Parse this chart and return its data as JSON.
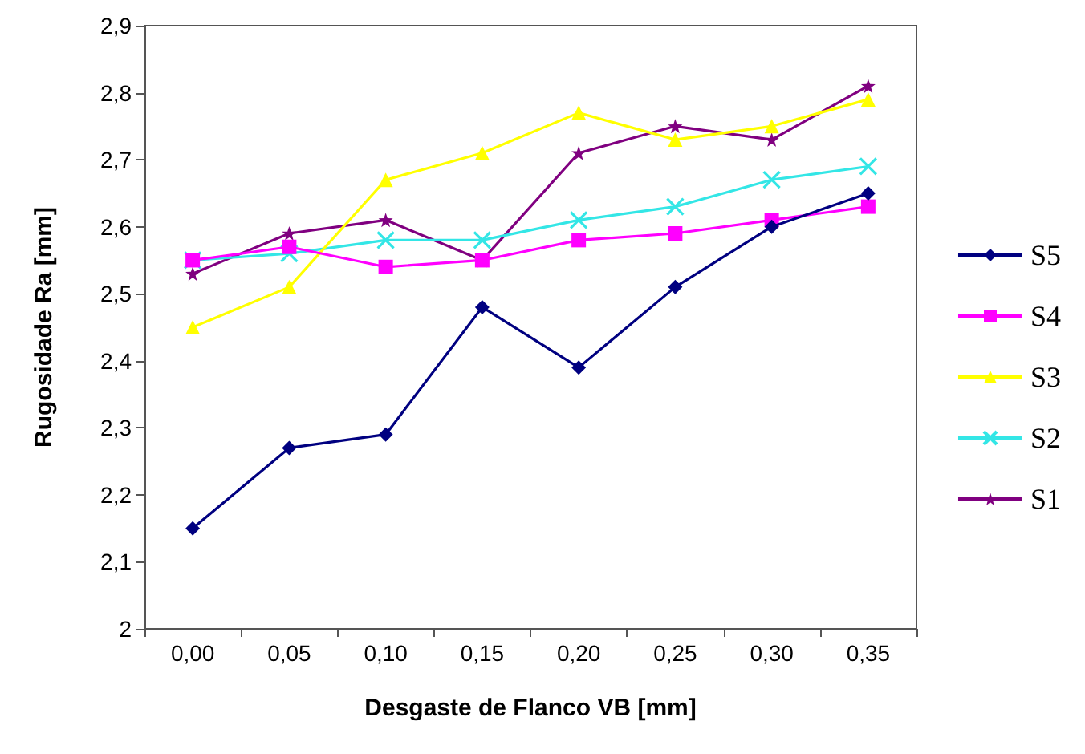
{
  "chart_data": {
    "type": "line",
    "xlabel": "Desgaste de Flanco VB [mm]",
    "ylabel": "Rugosidade Ra [mm]",
    "categories": [
      "0,00",
      "0,05",
      "0,10",
      "0,15",
      "0,20",
      "0,25",
      "0,30",
      "0,35"
    ],
    "series": [
      {
        "name": "S5",
        "color": "#000080",
        "marker": "diamond",
        "values": [
          2.15,
          2.27,
          2.29,
          2.48,
          2.39,
          2.51,
          2.6,
          2.65
        ]
      },
      {
        "name": "S4",
        "color": "#ff00ff",
        "marker": "square",
        "values": [
          2.55,
          2.57,
          2.54,
          2.55,
          2.58,
          2.59,
          2.61,
          2.63
        ]
      },
      {
        "name": "S3",
        "color": "#ffff00",
        "marker": "triangle",
        "values": [
          2.45,
          2.51,
          2.67,
          2.71,
          2.77,
          2.73,
          2.75,
          2.79
        ]
      },
      {
        "name": "S2",
        "color": "#33e6e6",
        "marker": "cross",
        "values": [
          2.55,
          2.56,
          2.58,
          2.58,
          2.61,
          2.63,
          2.67,
          2.69
        ]
      },
      {
        "name": "S1",
        "color": "#800080",
        "marker": "star",
        "values": [
          2.53,
          2.59,
          2.61,
          2.55,
          2.71,
          2.75,
          2.73,
          2.81
        ]
      }
    ],
    "ylim": [
      2,
      2.9
    ],
    "yticks": [
      2,
      {
        "value": 2.1,
        "label": "2,1"
      },
      {
        "value": 2.2,
        "label": "2,2"
      },
      {
        "value": 2.3,
        "label": "2,3"
      },
      {
        "value": 2.4,
        "label": "2,4"
      },
      {
        "value": 2.5,
        "label": "2,5"
      },
      {
        "value": 2.6,
        "label": "2,6"
      },
      {
        "value": 2.7,
        "label": "2,7"
      },
      {
        "value": 2.8,
        "label": "2,8"
      },
      {
        "value": 2.9,
        "label": "2,9"
      }
    ],
    "grid": false,
    "legend": "right",
    "line_style": "solid"
  }
}
